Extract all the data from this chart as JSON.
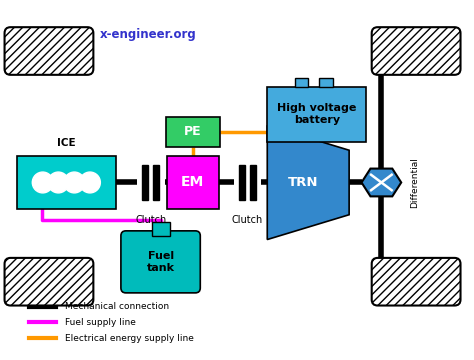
{
  "bg_color": "#ffffff",
  "title_text": "x-engineer.org",
  "title_color": "#3333cc",
  "ice_color": "#00cccc",
  "em_color": "#ff00ff",
  "pe_color": "#33cc66",
  "trn_color": "#3388cc",
  "battery_color": "#44aadd",
  "fuel_tank_color": "#00bbbb",
  "diff_color": "#3388cc",
  "mech_color": "#000000",
  "fuel_color": "#ff00ff",
  "elec_color": "#ff9900",
  "legend_items": [
    {
      "label": "Mechanical connection",
      "color": "#000000"
    },
    {
      "label": "Fuel supply line",
      "color": "#ff00ff"
    },
    {
      "label": "Electrical energy supply line",
      "color": "#ff9900"
    }
  ],
  "xlim": [
    0,
    9.48
  ],
  "ylim": [
    0,
    7.2
  ]
}
